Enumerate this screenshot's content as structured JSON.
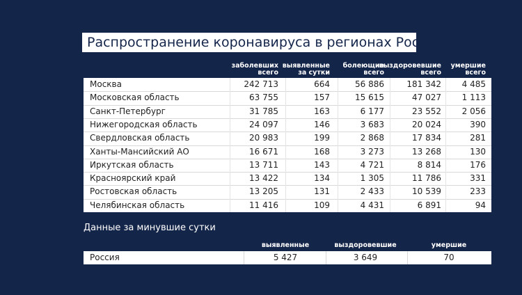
{
  "title": "Распространение коронавируса в регионах России",
  "table": {
    "headers": [
      [
        "заболевших",
        "всего"
      ],
      [
        "выявленные",
        "за сутки"
      ],
      [
        "болеющие",
        "всего"
      ],
      [
        "выздоровевшие",
        "всего"
      ],
      [
        "умершие",
        "всего"
      ]
    ],
    "rows": [
      [
        "Москва",
        "242 713",
        "664",
        "56 886",
        "181 342",
        "4 485"
      ],
      [
        "Московская область",
        "63 755",
        "157",
        "15 615",
        "47 027",
        "1 113"
      ],
      [
        "Санкт-Петербург",
        "31 785",
        "163",
        "6 177",
        "23 552",
        "2 056"
      ],
      [
        "Нижегородская область",
        "24 097",
        "146",
        "3 683",
        "20 024",
        "390"
      ],
      [
        "Свердловская область",
        "20 983",
        "199",
        "2 868",
        "17 834",
        "281"
      ],
      [
        "Ханты-Мансийский АО",
        "16 671",
        "168",
        "3 273",
        "13 268",
        "130"
      ],
      [
        "Иркутская область",
        "13 711",
        "143",
        "4 721",
        "8 814",
        "176"
      ],
      [
        "Красноярский край",
        "13 422",
        "134",
        "1 305",
        "11 786",
        "331"
      ],
      [
        "Ростовская область",
        "13 205",
        "131",
        "2 433",
        "10 539",
        "233"
      ],
      [
        "Челябинская область",
        "11 416",
        "109",
        "4 431",
        "6 891",
        "94"
      ]
    ]
  },
  "daily": {
    "title": "Данные за минувшие сутки",
    "headers": [
      "выявленные",
      "выздоровевшие",
      "умершие"
    ],
    "row": [
      "Россия",
      "5 427",
      "3 649",
      "70"
    ]
  }
}
